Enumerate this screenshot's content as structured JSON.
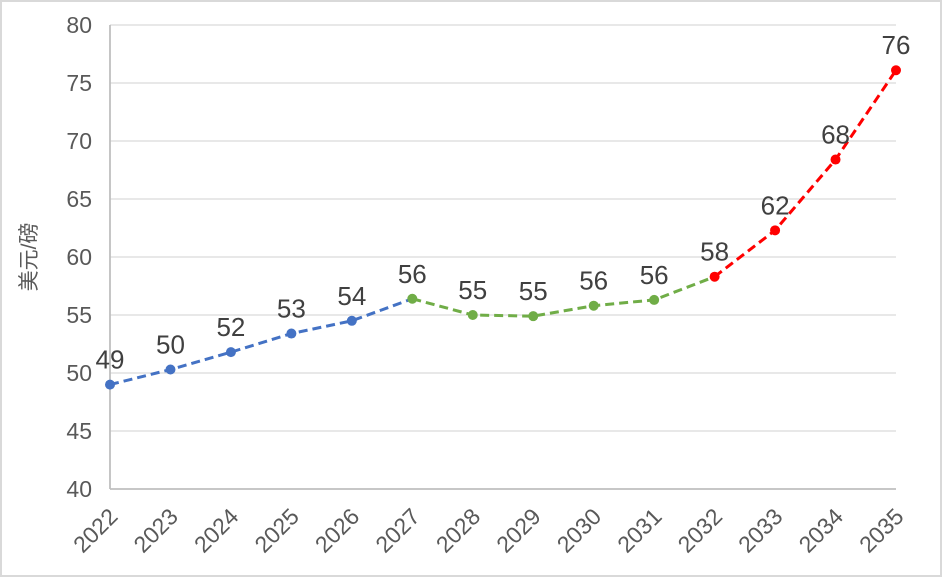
{
  "chart_data": {
    "type": "line",
    "title": "",
    "xlabel": "",
    "ylabel": "美元/磅",
    "ylim": [
      40,
      80
    ],
    "yticks": [
      40,
      45,
      50,
      55,
      60,
      65,
      70,
      75,
      80
    ],
    "grid": true,
    "legend": "none",
    "line_style": "dashed",
    "marker": "circle",
    "categories": [
      "2022",
      "2023",
      "2024",
      "2025",
      "2026",
      "2027",
      "2028",
      "2029",
      "2030",
      "2031",
      "2032",
      "2033",
      "2034",
      "2035"
    ],
    "values": [
      49.0,
      50.3,
      51.8,
      53.4,
      54.5,
      56.4,
      55.0,
      54.9,
      55.8,
      56.3,
      58.3,
      62.3,
      68.4,
      76.1
    ],
    "point_labels": [
      "49",
      "50",
      "52",
      "53",
      "54",
      "56",
      "55",
      "55",
      "56",
      "56",
      "58",
      "62",
      "68",
      "76"
    ],
    "marker_colors": [
      "#4472C4",
      "#4472C4",
      "#4472C4",
      "#4472C4",
      "#4472C4",
      "#70AD47",
      "#70AD47",
      "#70AD47",
      "#70AD47",
      "#70AD47",
      "#FF0000",
      "#FF0000",
      "#FF0000",
      "#FF0000"
    ],
    "segments": [
      {
        "name": "blue-dashed-segment",
        "color": "#4472C4",
        "start_index": 0,
        "end_index": 5
      },
      {
        "name": "green-dashed-segment",
        "color": "#70AD47",
        "start_index": 5,
        "end_index": 10
      },
      {
        "name": "red-dashed-segment",
        "color": "#FF0000",
        "start_index": 10,
        "end_index": 13
      }
    ]
  },
  "style": {
    "background": "#FFFFFF",
    "frame_border_color": "#D9D9D9",
    "grid_color": "#D9D9D9",
    "axis_color": "#BFBFBF",
    "tick_label_color": "#595959",
    "axis_title_color": "#595959",
    "data_label_color": "#404040"
  }
}
